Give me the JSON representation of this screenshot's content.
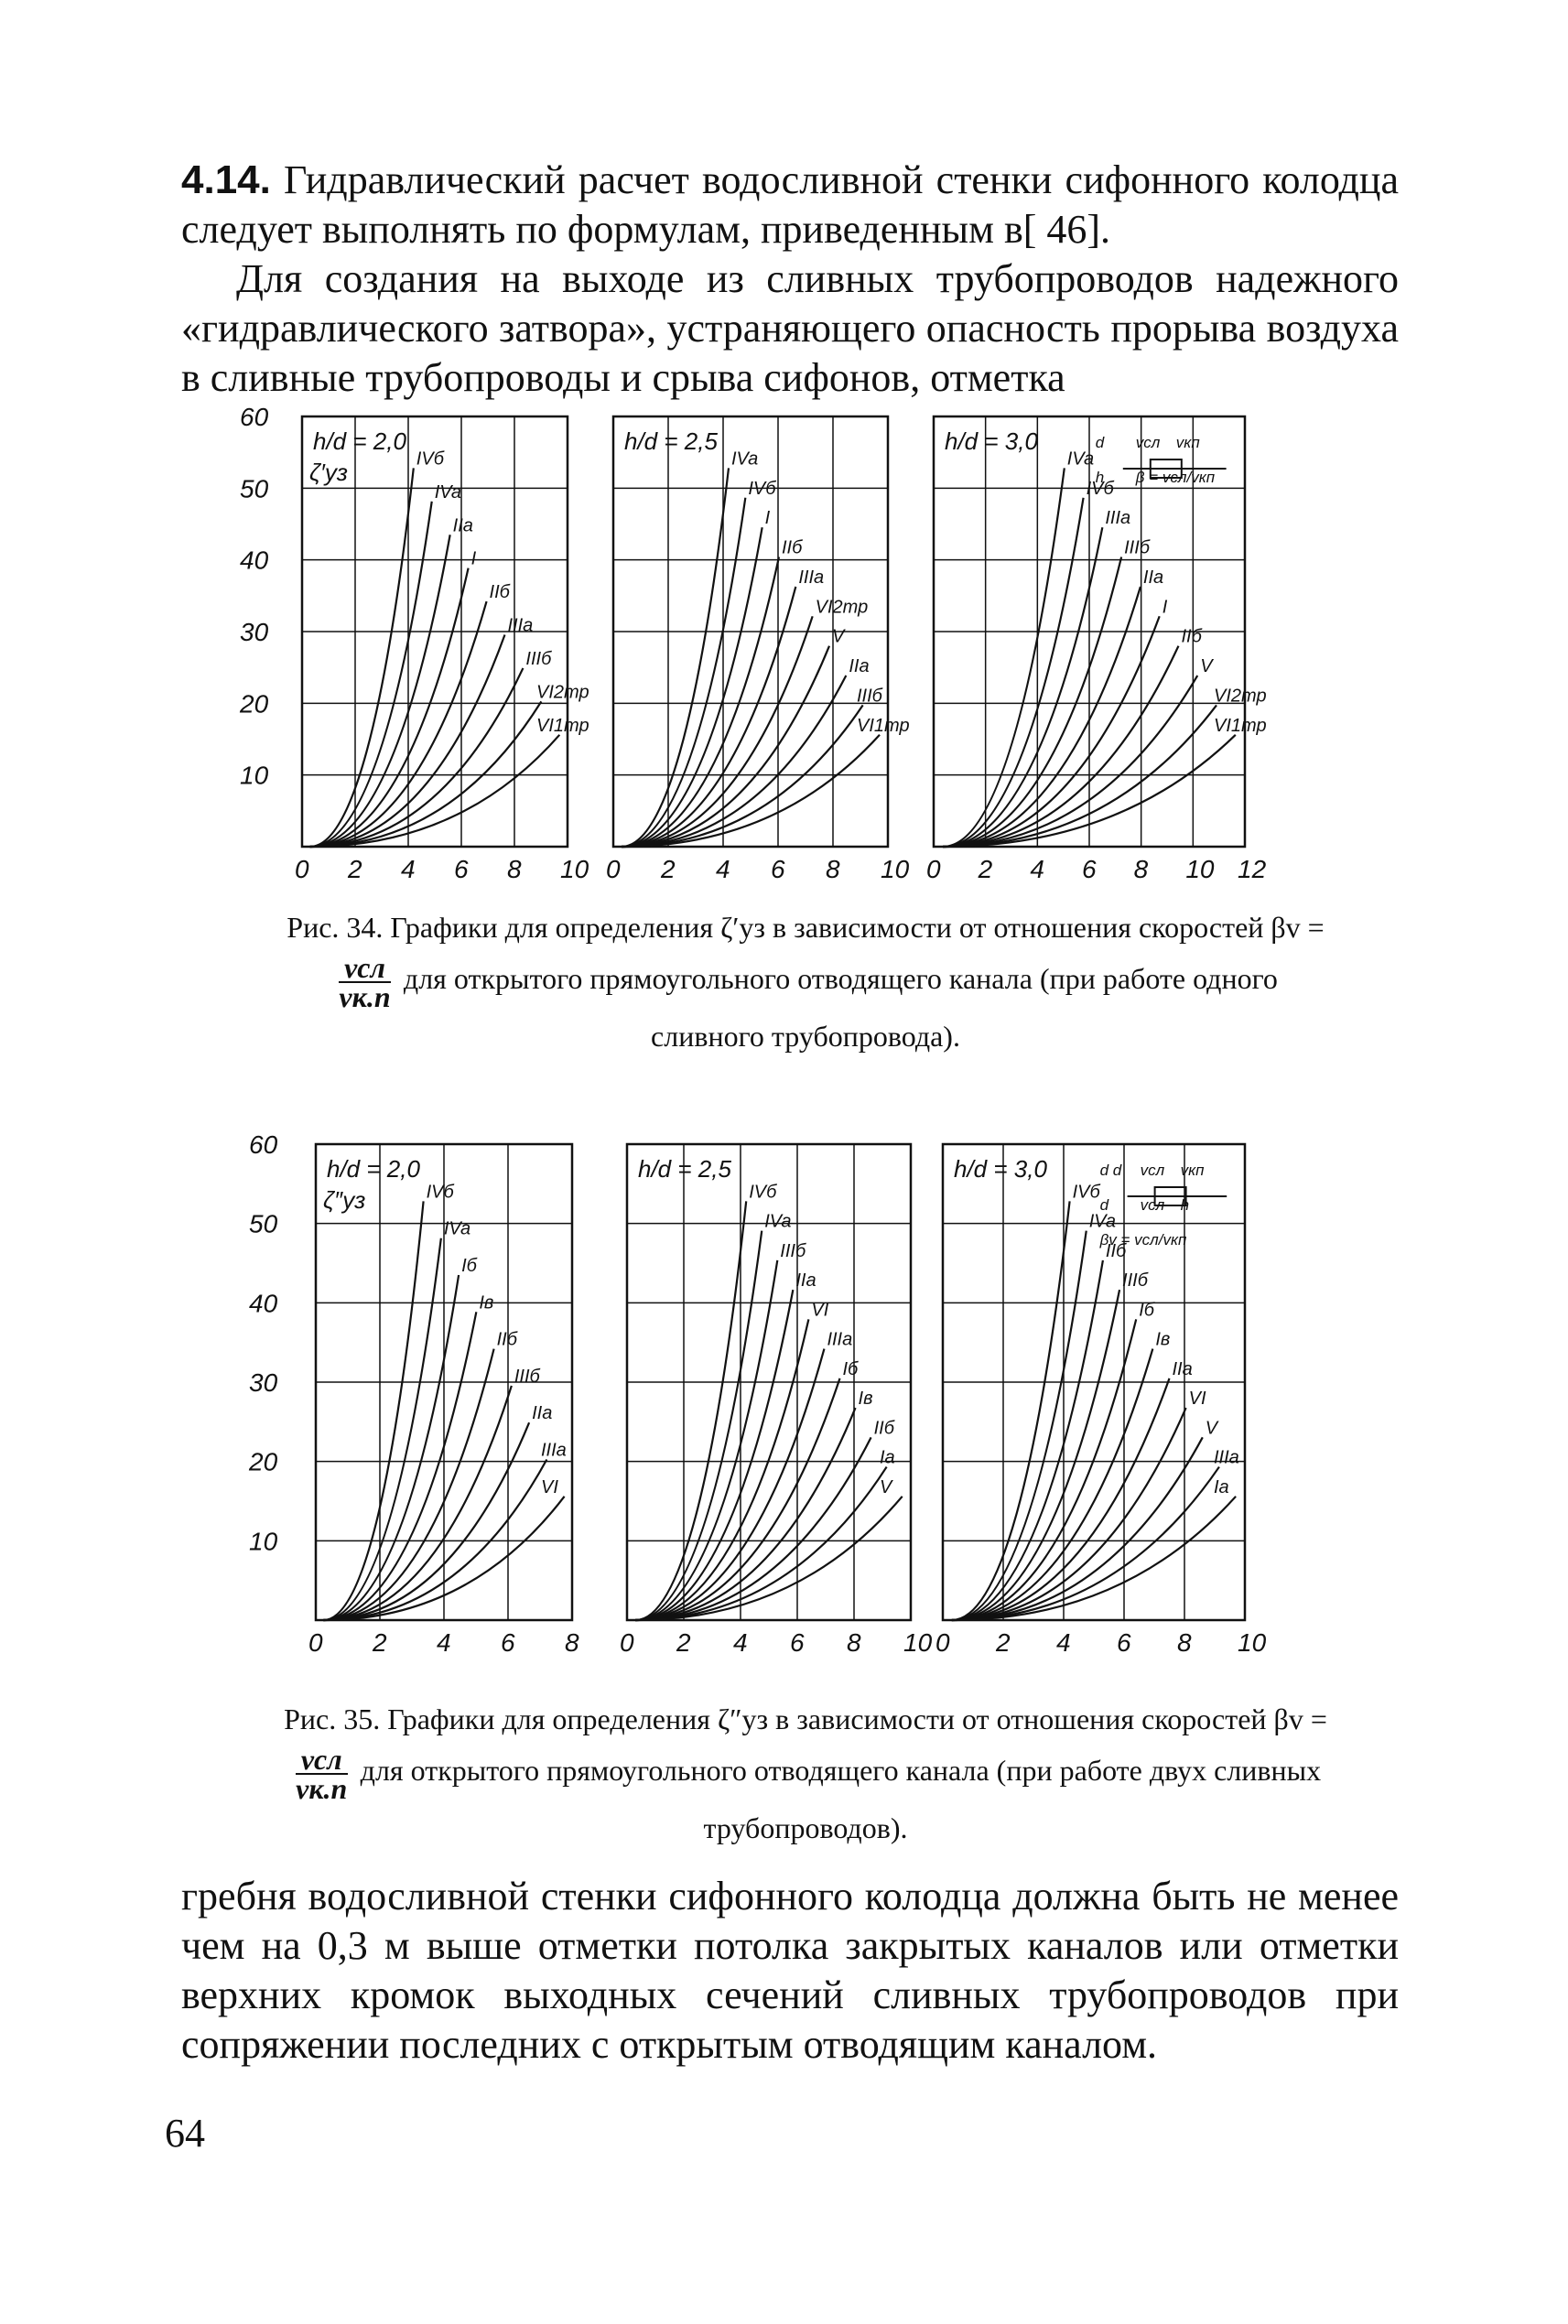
{
  "section": {
    "number": "4.14.",
    "text1": "Гидравлический расчет водосливной стенки сифонного колодца следует выполнять по формулам, приведенным в[ 46].",
    "text2": "Для создания на выходе из сливных трубопроводов надежного «гидравлического затвора», устраняющего опасность прорыва воздуха в сливные трубопроводы и срыва сифонов, отметка"
  },
  "fig34": {
    "caption_part1": "Рис. 34. Графики для определения ζ′уз в зависимости от отношения скоростей βv =",
    "caption_part2": "для открытого прямоугольного отводящего канала (при работе одного сливного трубопровода).",
    "frac_top": "vсл",
    "frac_bottom": "vк.п",
    "ylabel": "ζ′уз",
    "yticks": [
      "10",
      "20",
      "30",
      "40",
      "50",
      "60"
    ],
    "panels": [
      {
        "param": "h/d = 2,0",
        "xticks": [
          "0",
          "2",
          "4",
          "6",
          "8",
          "10"
        ],
        "curve_labels": [
          "IVб",
          "IVa",
          "IIa",
          "I",
          "IIб",
          "IIIa",
          "IIIб",
          "VI2тр",
          "VI1тр"
        ]
      },
      {
        "param": "h/d = 2,5",
        "xticks": [
          "0",
          "2",
          "4",
          "6",
          "8",
          "10"
        ],
        "curve_labels": [
          "IVa",
          "IVб",
          "I",
          "IIб",
          "IIIa",
          "VI2тр",
          "V",
          "IIa",
          "IIIб",
          "VI1тр"
        ]
      },
      {
        "param": "h/d = 3,0",
        "xticks": [
          "0",
          "2",
          "4",
          "6",
          "8",
          "10",
          "12"
        ],
        "curve_labels": [
          "IVa",
          "IVб",
          "IIIa",
          "IIIб",
          "IIa",
          "I",
          "IIб",
          "V",
          "VI2тр",
          "VI1тр"
        ],
        "inset_labels": [
          "d",
          "vсл",
          "vкп",
          "h",
          "β = vсл/vкп"
        ]
      }
    ]
  },
  "fig35": {
    "caption_part1": "Рис. 35. Графики для определения ζ″уз в зависимости от отношения скоростей βv =",
    "caption_part2": "для открытого прямоугольного отводящего канала (при работе двух сливных трубопроводов).",
    "frac_top": "vсл",
    "frac_bottom": "vк.п",
    "ylabel": "ζ″уз",
    "yticks": [
      "10",
      "20",
      "30",
      "40",
      "50",
      "60"
    ],
    "panels": [
      {
        "param": "h/d = 2,0",
        "xticks": [
          "0",
          "2",
          "4",
          "6",
          "8"
        ],
        "curve_labels": [
          "IVб",
          "IVa",
          "Iб",
          "Iв",
          "IIб",
          "IIIб",
          "IIa",
          "IIIa",
          "VI"
        ]
      },
      {
        "param": "h/d = 2,5",
        "xticks": [
          "0",
          "2",
          "4",
          "6",
          "8",
          "10"
        ],
        "curve_labels": [
          "IVб",
          "IVa",
          "IIIб",
          "IIa",
          "VI",
          "IIIa",
          "Iб",
          "Iв",
          "IIб",
          "Ia",
          "V"
        ]
      },
      {
        "param": "h/d = 3,0",
        "xticks": [
          "0",
          "2",
          "4",
          "6",
          "8",
          "10"
        ],
        "curve_labels": [
          "IVб",
          "IVa",
          "IIб",
          "IIIб",
          "Iб",
          "Iв",
          "IIa",
          "VI",
          "V",
          "IIIa",
          "Ia"
        ],
        "inset_labels": [
          "d d",
          "vсл",
          "vкп",
          "d",
          "vсл",
          "h",
          "βv = vсл/vкп"
        ]
      }
    ]
  },
  "closing": {
    "text": "гребня водосливной стенки сифонного колодца должна быть не менее чем на 0,3 м выше отметки потолка закрытых каналов или отметки верхних кромок выходных сечений сливных трубопроводов при сопряжении последних с открытым отводящим каналом."
  },
  "page_number": "64"
}
